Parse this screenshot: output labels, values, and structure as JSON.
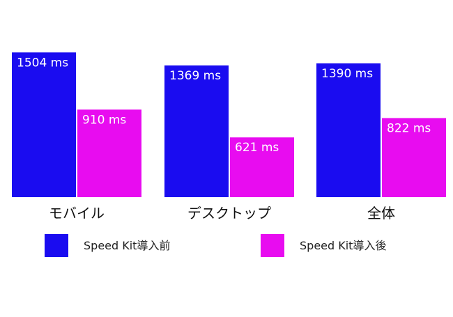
{
  "chart_data": {
    "type": "bar",
    "title": "",
    "xlabel": "",
    "ylabel": "",
    "ylim": [
      0,
      1600
    ],
    "grid": false,
    "legend_position": "bottom",
    "categories": [
      "モバイル",
      "デスクトップ",
      "全体"
    ],
    "unit_suffix": " ms",
    "series": [
      {
        "name": "Speed Kit導入前",
        "color": "#1a0cf0",
        "values": [
          1504,
          1369,
          1390
        ]
      },
      {
        "name": "Speed Kit導入後",
        "color": "#e80cf0",
        "values": [
          910,
          621,
          822
        ]
      }
    ]
  }
}
